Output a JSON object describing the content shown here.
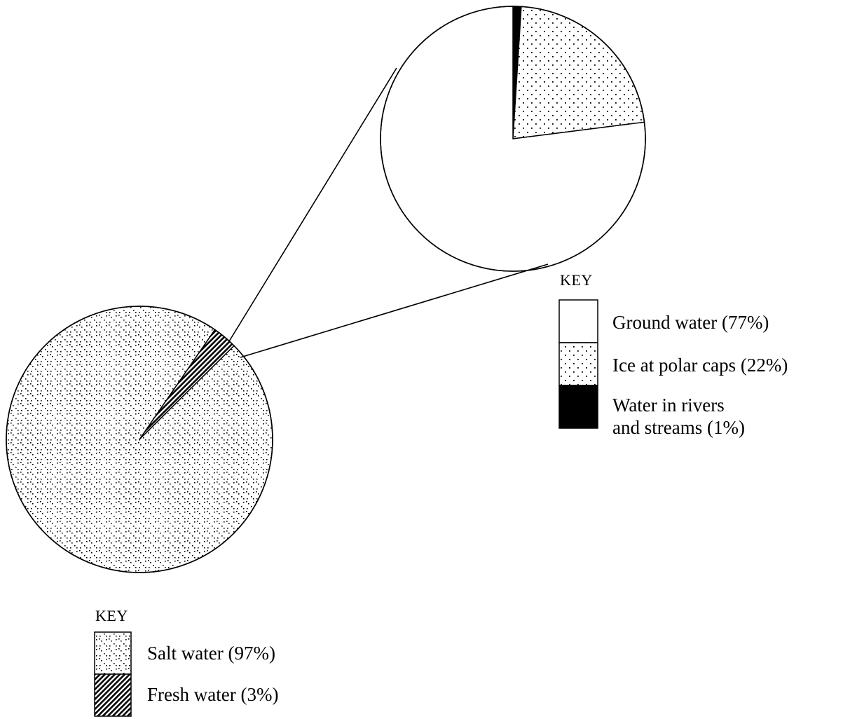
{
  "chart_data": [
    {
      "type": "pie",
      "name": "all-water",
      "title": "",
      "slices": [
        {
          "label": "Salt water (97%)",
          "value": 97,
          "pattern": "diagonal-dots"
        },
        {
          "label": "Fresh water (3%)",
          "value": 3,
          "pattern": "diagonal-hatch"
        }
      ],
      "key_title": "KEY",
      "legend_position": "bottom-left"
    },
    {
      "type": "pie",
      "name": "fresh-water-breakdown",
      "title": "",
      "slices": [
        {
          "label": "Ground water (77%)",
          "value": 77,
          "pattern": "white"
        },
        {
          "label": "Ice at polar caps (22%)",
          "value": 22,
          "pattern": "dots"
        },
        {
          "label": "Water in rivers and streams (1%)",
          "value": 1,
          "pattern": "solid-black"
        }
      ],
      "key_title": "KEY",
      "legend_position": "right"
    }
  ],
  "keys": {
    "big": {
      "title": "KEY",
      "items": [
        "Salt water (97%)",
        "Fresh water (3%)"
      ]
    },
    "small": {
      "title": "KEY",
      "items": [
        {
          "lines": [
            "Ground water (77%)"
          ]
        },
        {
          "lines": [
            "Ice at polar caps (22%)"
          ]
        },
        {
          "lines": [
            "Water in rivers",
            "and streams (1%)"
          ]
        }
      ]
    }
  },
  "colors": {
    "ink": "#000000",
    "paper": "#ffffff"
  }
}
